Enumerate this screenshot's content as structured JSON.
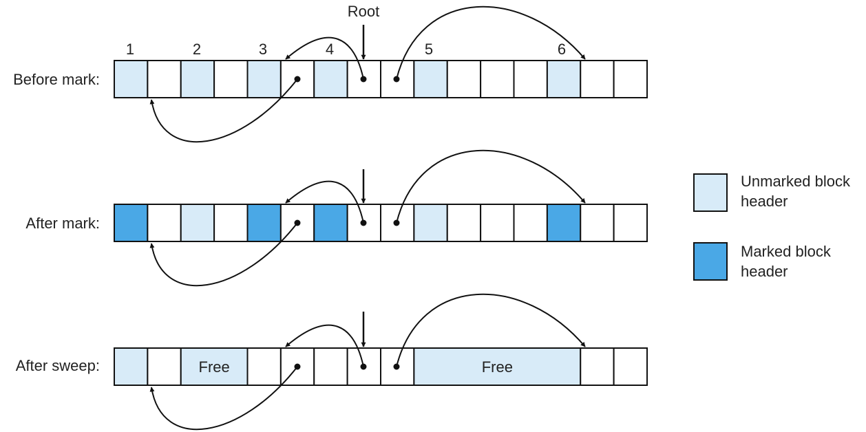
{
  "colors": {
    "unmarked": "#d8ebf8",
    "marked": "#4aa8e6",
    "empty": "#ffffff",
    "stroke": "#111111"
  },
  "root_label": "Root",
  "block_numbers": [
    "1",
    "2",
    "3",
    "4",
    "5",
    "6"
  ],
  "rows": [
    {
      "label": "Before mark:",
      "cells": [
        "unmarked",
        "empty",
        "unmarked",
        "empty",
        "unmarked",
        "empty",
        "unmarked",
        "empty",
        "empty",
        "unmarked",
        "empty",
        "empty",
        "empty",
        "unmarked",
        "empty",
        "empty"
      ],
      "free_spans": []
    },
    {
      "label": "After mark:",
      "cells": [
        "marked",
        "empty",
        "unmarked",
        "empty",
        "marked",
        "empty",
        "marked",
        "empty",
        "empty",
        "unmarked",
        "empty",
        "empty",
        "empty",
        "marked",
        "empty",
        "empty"
      ],
      "free_spans": []
    },
    {
      "label": "After sweep:",
      "cells": [
        "unmarked",
        "empty",
        "unmarked",
        "empty",
        "empty",
        "empty",
        "empty",
        "empty",
        "empty",
        "unmarked",
        "unmarked",
        "unmarked",
        "unmarked",
        "empty",
        "empty",
        "empty"
      ],
      "free_spans": [
        {
          "start": 2,
          "end": 3,
          "text": "Free"
        },
        {
          "start": 9,
          "end": 13,
          "text": "Free"
        }
      ]
    }
  ],
  "legend": [
    {
      "kind": "unmarked",
      "line1": "Unmarked block",
      "line2": "header"
    },
    {
      "kind": "marked",
      "line1": "Marked block",
      "line2": "header"
    }
  ]
}
